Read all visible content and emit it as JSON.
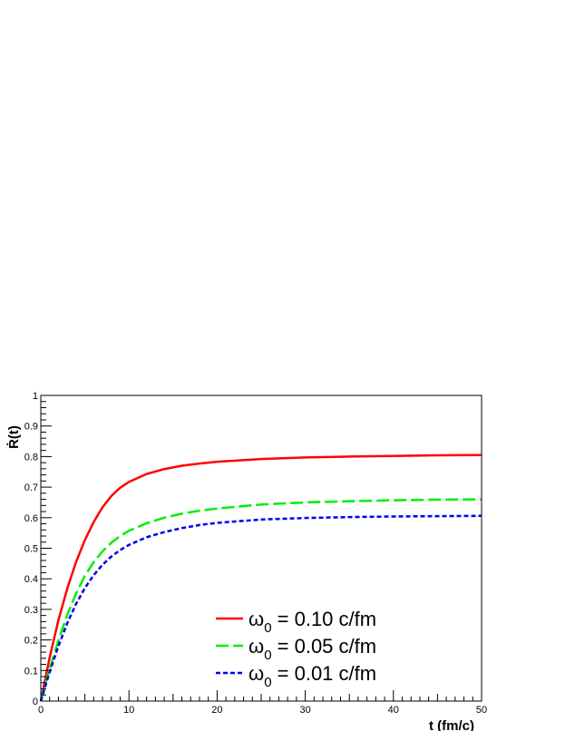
{
  "chart_data": {
    "type": "line",
    "title": "",
    "xlabel": "t (fm/c)",
    "ylabel": "Ṙ(t)",
    "xlim": [
      0,
      50
    ],
    "ylim": [
      0,
      1
    ],
    "x_ticks": [
      "0",
      "10",
      "20",
      "30",
      "40",
      "50"
    ],
    "y_ticks": [
      "0",
      "0.1",
      "0.2",
      "0.3",
      "0.4",
      "0.5",
      "0.6",
      "0.7",
      "0.8",
      "0.9",
      "1"
    ],
    "grid": false,
    "legend_position": "bottom-right",
    "series": [
      {
        "name": "ω",
        "subscript": "0",
        "suffix": " = 0.10 c/fm",
        "color": "#ff0000",
        "style": "solid",
        "x": [
          0,
          1,
          2,
          3,
          4,
          5,
          6,
          7,
          8,
          9,
          10,
          12,
          14,
          16,
          18,
          20,
          25,
          30,
          35,
          40,
          45,
          50
        ],
        "y": [
          0,
          0.142,
          0.265,
          0.368,
          0.455,
          0.527,
          0.586,
          0.634,
          0.671,
          0.698,
          0.717,
          0.743,
          0.759,
          0.77,
          0.777,
          0.783,
          0.792,
          0.797,
          0.8,
          0.802,
          0.804,
          0.805
        ]
      },
      {
        "name": "ω",
        "subscript": "0",
        "suffix": " = 0.05 c/fm",
        "color": "#00ee00",
        "style": "dashed",
        "x": [
          0,
          1,
          2,
          3,
          4,
          5,
          6,
          7,
          8,
          9,
          10,
          12,
          14,
          16,
          18,
          20,
          25,
          30,
          35,
          40,
          45,
          50
        ],
        "y": [
          0,
          0.105,
          0.199,
          0.282,
          0.352,
          0.41,
          0.455,
          0.49,
          0.518,
          0.54,
          0.557,
          0.582,
          0.6,
          0.613,
          0.623,
          0.63,
          0.643,
          0.65,
          0.654,
          0.657,
          0.659,
          0.66
        ]
      },
      {
        "name": "ω",
        "subscript": "0",
        "suffix": " = 0.01 c/fm",
        "color": "#0000ee",
        "style": "dotted",
        "x": [
          0,
          1,
          2,
          3,
          4,
          5,
          6,
          7,
          8,
          9,
          10,
          12,
          14,
          16,
          18,
          20,
          25,
          30,
          35,
          40,
          45,
          50
        ],
        "y": [
          0,
          0.095,
          0.18,
          0.255,
          0.318,
          0.37,
          0.412,
          0.446,
          0.473,
          0.494,
          0.511,
          0.536,
          0.553,
          0.566,
          0.576,
          0.583,
          0.594,
          0.599,
          0.602,
          0.604,
          0.605,
          0.606
        ]
      }
    ]
  }
}
